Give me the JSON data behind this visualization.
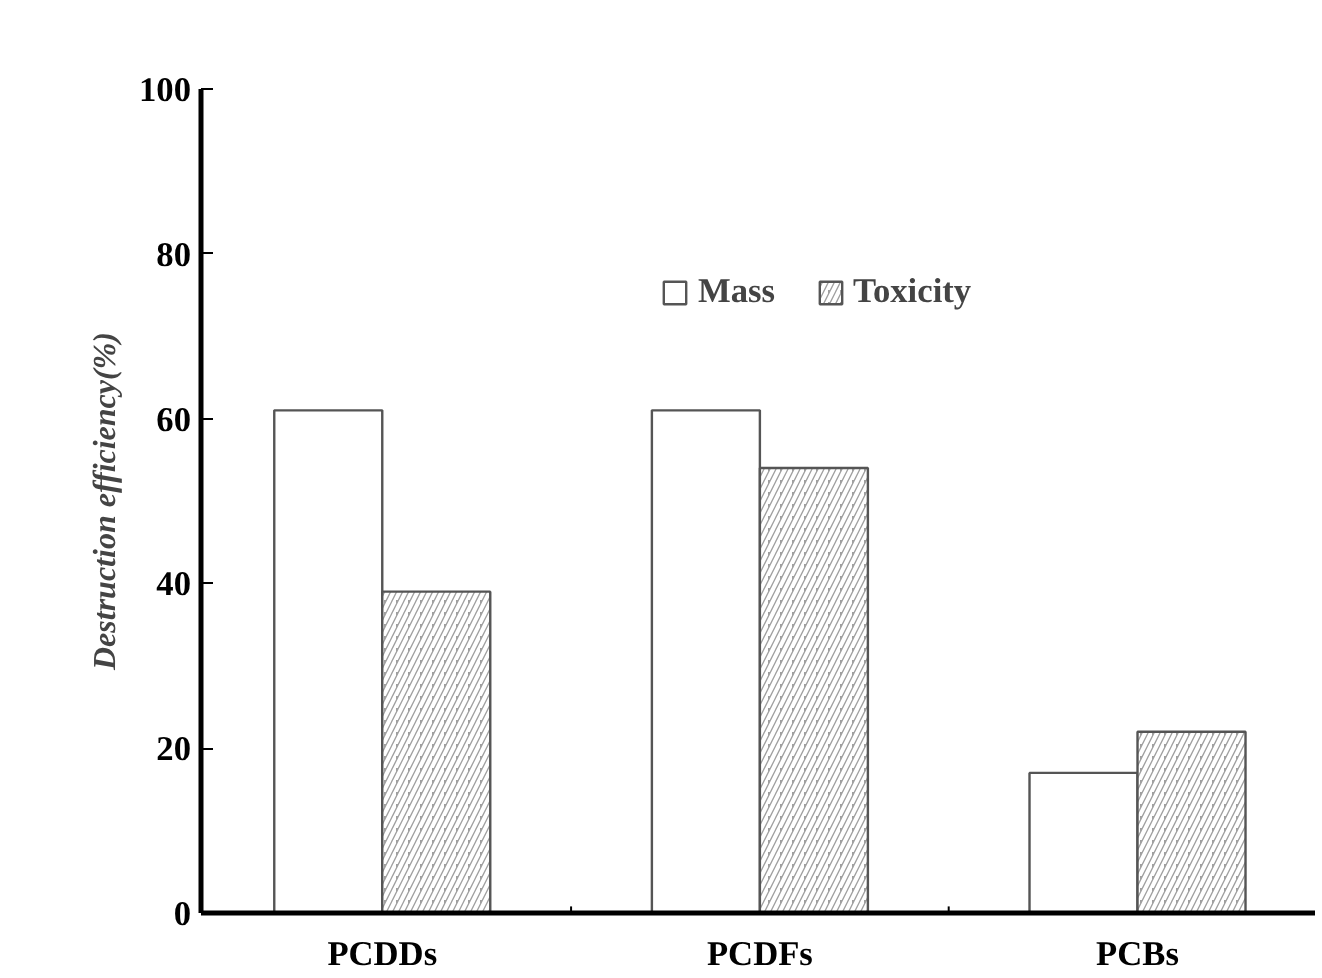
{
  "chart_data": {
    "type": "bar",
    "ylabel": "Destruction efficiency(%)",
    "categories": [
      "PCDDs",
      "PCDFs",
      "PCBs"
    ],
    "series": [
      {
        "name": "Mass",
        "color": "#ffffff",
        "values": [
          61,
          61,
          17
        ]
      },
      {
        "name": "Toxicity",
        "color": "#a0a0a0",
        "values": [
          39,
          54,
          22
        ]
      }
    ],
    "ylim": [
      0,
      100
    ],
    "yticks": [
      0,
      20,
      40,
      60,
      80,
      100
    ],
    "grid": false,
    "legend": "top right"
  }
}
